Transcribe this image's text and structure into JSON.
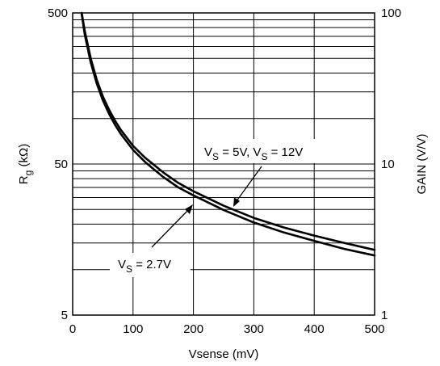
{
  "chart_data": {
    "type": "line",
    "title": "",
    "xlabel": "Vsense (mV)",
    "ylabel": "R",
    "ylabel_sub": "g",
    "ylabel_tail": " (kΩ)",
    "y2label": "GAIN (V/V)",
    "x_ticks": [
      "0",
      "100",
      "200",
      "300",
      "400",
      "500"
    ],
    "y_ticks": [
      "5",
      "50",
      "500"
    ],
    "y2_ticks": [
      "1",
      "10",
      "100"
    ],
    "xlim": [
      0,
      500
    ],
    "ylim": [
      5,
      500
    ],
    "y2lim": [
      1,
      100
    ],
    "yscale": "log",
    "grid": true,
    "series": [
      {
        "name": "V_S = 5V, V_S = 12V",
        "x": [
          15,
          20,
          30,
          40,
          50,
          60,
          70,
          80,
          100,
          120,
          150,
          175,
          200,
          250,
          300,
          350,
          400,
          450,
          500
        ],
        "y": [
          500,
          380,
          250,
          180,
          140,
          115,
          97,
          84,
          66,
          55,
          44,
          37.5,
          33,
          26.5,
          22,
          19,
          16.8,
          15,
          13.5
        ]
      },
      {
        "name": "V_S = 2.7V",
        "x": [
          15,
          20,
          30,
          40,
          50,
          60,
          70,
          80,
          100,
          120,
          150,
          175,
          200,
          250,
          300,
          350,
          400,
          450,
          500
        ],
        "y": [
          490,
          360,
          235,
          170,
          132,
          108,
          91,
          79,
          62,
          51.5,
          41,
          35,
          31,
          24.8,
          20.5,
          17.6,
          15.5,
          13.7,
          12.4
        ]
      }
    ],
    "annotations": [
      {
        "base": "V",
        "sub": "S",
        "text": " = 5V, V",
        "sub2": "S",
        "text2": " = 12V"
      },
      {
        "base": "V",
        "sub": "S",
        "text": " = 2.7V"
      }
    ]
  }
}
